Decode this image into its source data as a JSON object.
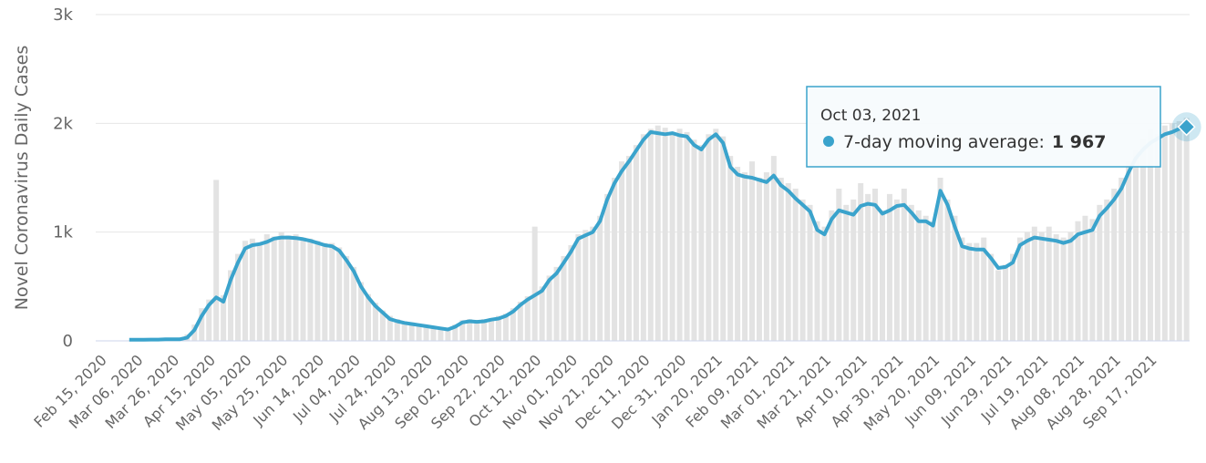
{
  "chart_data": {
    "type": "line",
    "ylabel": "Novel Coronavirus Daily Cases",
    "categories": [
      "Feb 15, 2020",
      null,
      null,
      null,
      null,
      "Mar 06, 2020",
      null,
      null,
      null,
      null,
      "Mar 26, 2020",
      null,
      null,
      null,
      null,
      "Apr 15, 2020",
      null,
      null,
      null,
      null,
      "May 05, 2020",
      null,
      null,
      null,
      null,
      "May 25, 2020",
      null,
      null,
      null,
      null,
      "Jun 14, 2020",
      null,
      null,
      null,
      null,
      "Jul 04, 2020",
      null,
      null,
      null,
      null,
      "Jul 24, 2020",
      null,
      null,
      null,
      null,
      "Aug 13, 2020",
      null,
      null,
      null,
      null,
      "Sep 02, 2020",
      null,
      null,
      null,
      null,
      "Sep 22, 2020",
      null,
      null,
      null,
      null,
      "Oct 12, 2020",
      null,
      null,
      null,
      null,
      "Nov 01, 2020",
      null,
      null,
      null,
      null,
      "Nov 21, 2020",
      null,
      null,
      null,
      null,
      "Dec 11, 2020",
      null,
      null,
      null,
      null,
      "Dec 31, 2020",
      null,
      null,
      null,
      null,
      "Jan 20, 2021",
      null,
      null,
      null,
      null,
      "Feb 09, 2021",
      null,
      null,
      null,
      null,
      "Mar 01, 2021",
      null,
      null,
      null,
      null,
      "Mar 21, 2021",
      null,
      null,
      null,
      null,
      "Apr 10, 2021",
      null,
      null,
      null,
      null,
      "Apr 30, 2021",
      null,
      null,
      null,
      null,
      "May 20, 2021",
      null,
      null,
      null,
      null,
      "Jun 09, 2021",
      null,
      null,
      null,
      null,
      "Jun 29, 2021",
      null,
      null,
      null,
      null,
      "Jul 19, 2021",
      null,
      null,
      null,
      null,
      "Aug 08, 2021",
      null,
      null,
      null,
      null,
      "Aug 28, 2021",
      null,
      null,
      null,
      null,
      "Sep 17, 2021",
      null,
      null,
      null,
      null
    ],
    "bars": {
      "color": "#e3e3e3",
      "values": [
        0,
        0,
        0,
        5,
        8,
        12,
        15,
        18,
        20,
        25,
        30,
        60,
        150,
        300,
        380,
        1480,
        420,
        650,
        800,
        920,
        940,
        900,
        980,
        960,
        1000,
        970,
        980,
        950,
        940,
        920,
        900,
        900,
        860,
        780,
        680,
        540,
        430,
        350,
        280,
        230,
        200,
        180,
        170,
        160,
        140,
        130,
        120,
        110,
        150,
        190,
        200,
        190,
        200,
        210,
        230,
        250,
        300,
        360,
        410,
        1050,
        500,
        600,
        680,
        780,
        880,
        980,
        1020,
        1050,
        1150,
        1350,
        1500,
        1650,
        1700,
        1800,
        1900,
        1950,
        1980,
        1960,
        1900,
        1950,
        1920,
        1850,
        1800,
        1900,
        1950,
        1880,
        1700,
        1600,
        1550,
        1650,
        1500,
        1550,
        1700,
        1500,
        1450,
        1400,
        1300,
        1250,
        1100,
        1050,
        1200,
        1400,
        1250,
        1300,
        1450,
        1350,
        1400,
        1200,
        1350,
        1300,
        1400,
        1250,
        1200,
        1150,
        1100,
        1500,
        1300,
        1150,
        950,
        900,
        900,
        950,
        800,
        650,
        700,
        800,
        950,
        1000,
        1050,
        1000,
        1050,
        980,
        950,
        1000,
        1100,
        1150,
        1120,
        1250,
        1300,
        1400,
        1500,
        1650,
        1750,
        1850,
        1950,
        1900,
        1980,
        2000,
        2020,
        2050
      ]
    },
    "series": [
      {
        "color": "#3aa3cc",
        "values": [
          null,
          null,
          null,
          10,
          10,
          10,
          12,
          12,
          14,
          15,
          15,
          30,
          100,
          230,
          330,
          400,
          360,
          560,
          720,
          850,
          880,
          890,
          910,
          940,
          950,
          950,
          945,
          935,
          920,
          900,
          880,
          870,
          830,
          740,
          640,
          500,
          400,
          320,
          260,
          200,
          180,
          165,
          155,
          145,
          135,
          125,
          115,
          105,
          130,
          170,
          180,
          175,
          180,
          195,
          205,
          230,
          270,
          330,
          380,
          420,
          460,
          560,
          620,
          720,
          820,
          940,
          970,
          1000,
          1100,
          1300,
          1450,
          1560,
          1650,
          1750,
          1850,
          1920,
          1910,
          1900,
          1910,
          1890,
          1880,
          1800,
          1760,
          1850,
          1900,
          1820,
          1600,
          1530,
          1510,
          1500,
          1480,
          1460,
          1520,
          1430,
          1380,
          1310,
          1250,
          1190,
          1020,
          980,
          1120,
          1200,
          1180,
          1160,
          1240,
          1260,
          1250,
          1170,
          1200,
          1240,
          1250,
          1180,
          1100,
          1100,
          1060,
          1380,
          1250,
          1050,
          870,
          850,
          840,
          840,
          760,
          670,
          680,
          720,
          880,
          920,
          950,
          940,
          930,
          920,
          900,
          920,
          980,
          1000,
          1020,
          1150,
          1220,
          1300,
          1400,
          1550,
          1680,
          1760,
          1820,
          1860,
          1900,
          1920,
          1950,
          1967
        ],
        "value_labels": [
          null,
          null,
          null,
          null,
          null,
          null,
          null,
          null,
          null,
          null,
          null,
          null,
          null,
          null,
          null,
          null,
          null,
          null,
          null,
          null,
          null,
          null,
          null,
          null,
          null,
          null,
          null,
          null,
          null,
          null,
          null,
          null,
          null,
          null,
          null,
          null,
          null,
          null,
          null,
          null,
          null,
          null,
          null,
          null,
          null,
          null,
          null,
          null,
          null,
          null,
          null,
          null,
          null,
          null,
          null,
          null,
          null,
          null,
          null,
          null,
          null,
          null,
          null,
          null,
          null,
          null,
          null,
          null,
          null,
          null,
          null,
          null,
          null,
          null,
          null,
          null,
          null,
          null,
          null,
          null,
          null,
          null,
          null,
          null,
          null,
          null,
          null,
          null,
          null,
          null,
          null,
          null,
          null,
          null,
          null,
          null,
          null,
          null,
          null,
          null,
          null,
          null,
          null,
          null,
          null,
          null,
          null,
          null,
          null,
          null,
          null,
          null,
          null,
          null,
          null,
          null,
          null,
          null,
          null,
          null,
          null,
          null,
          null,
          null,
          null,
          null,
          null,
          null,
          null,
          null,
          null,
          null,
          null,
          null,
          null,
          null,
          null,
          null,
          null,
          null,
          null,
          null,
          null,
          null,
          null,
          null,
          null,
          null,
          null,
          "1 967"
        ]
      }
    ],
    "tooltip": {
      "title": "Oct 03, 2021",
      "label": "7-day moving average:"
    },
    "ylim": [
      0,
      3000
    ],
    "yticks": [
      0,
      {
        "value": 1000,
        "label": "1k"
      },
      {
        "value": 2000,
        "label": "2k"
      },
      {
        "value": 3000,
        "label": "3k"
      }
    ],
    "grid": true
  }
}
